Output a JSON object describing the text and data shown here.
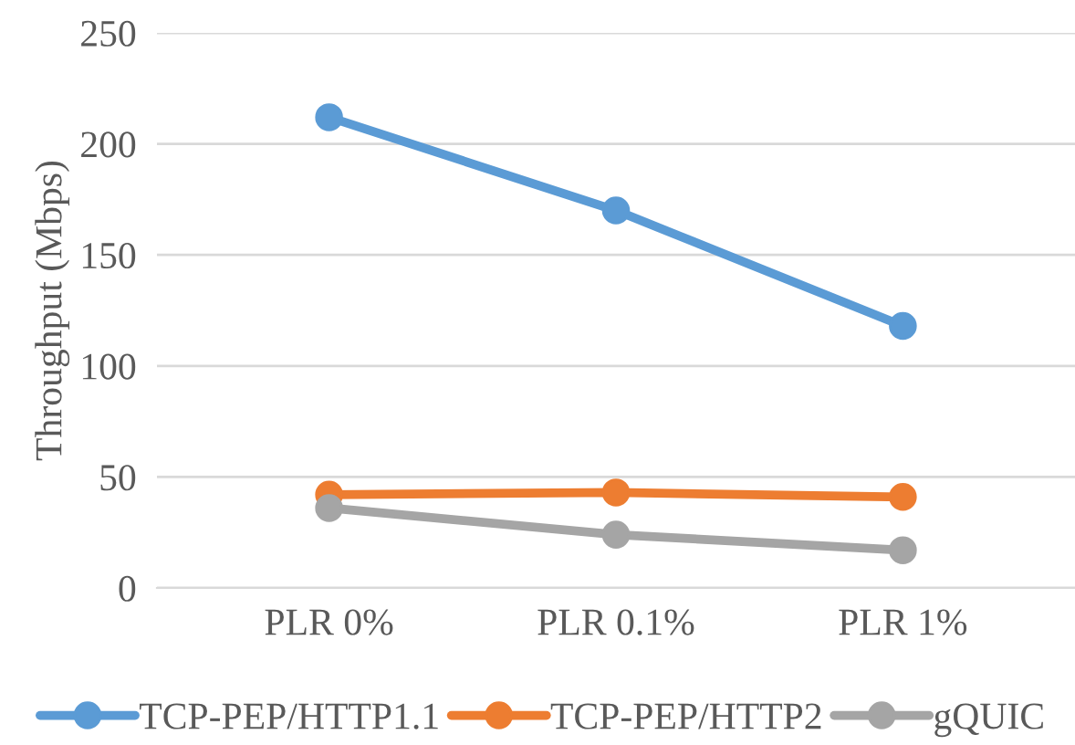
{
  "chart_data": {
    "type": "line",
    "ylabel": "Throughput (Mbps)",
    "categories": [
      "PLR 0%",
      "PLR 0.1%",
      "PLR 1%"
    ],
    "series": [
      {
        "name": "TCP-PEP/HTTP1.1",
        "color": "#5b9bd5",
        "values": [
          212,
          170,
          118
        ]
      },
      {
        "name": "TCP-PEP/HTTP2",
        "color": "#ed7d31",
        "values": [
          42,
          43,
          41
        ]
      },
      {
        "name": "gQUIC",
        "color": "#a5a5a5",
        "values": [
          36,
          24,
          17
        ]
      }
    ],
    "ylim": [
      0,
      250
    ],
    "yticks": [
      0,
      50,
      100,
      150,
      200,
      250
    ],
    "grid": "y",
    "legend": "bottom",
    "marker": "circle",
    "line_style": "solid"
  }
}
